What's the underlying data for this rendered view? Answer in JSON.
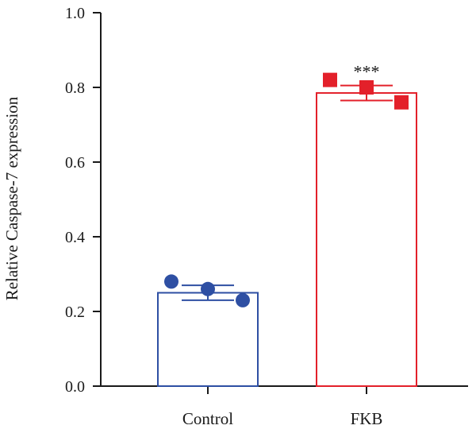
{
  "chart_data": {
    "type": "bar",
    "title": "",
    "xlabel": "",
    "ylabel": "Relative Caspase-7 expression",
    "ylim": [
      0,
      1.0
    ],
    "y_ticks": [
      0.0,
      0.2,
      0.4,
      0.6,
      0.8,
      1.0
    ],
    "y_tick_labels": [
      "0.0",
      "0.2",
      "0.4",
      "0.6",
      "0.8",
      "1.0"
    ],
    "grid": false,
    "categories": [
      "Control",
      "FKB"
    ],
    "values": [
      0.25,
      0.785
    ],
    "errors": [
      0.02,
      0.02
    ],
    "colors": [
      "#2e4fa3",
      "#e3202a"
    ],
    "marker_shapes": [
      "circle",
      "square"
    ],
    "points": [
      [
        0.28,
        0.26,
        0.23
      ],
      [
        0.82,
        0.8,
        0.76
      ]
    ],
    "annotations": [
      {
        "category": "FKB",
        "text": "***"
      }
    ]
  }
}
